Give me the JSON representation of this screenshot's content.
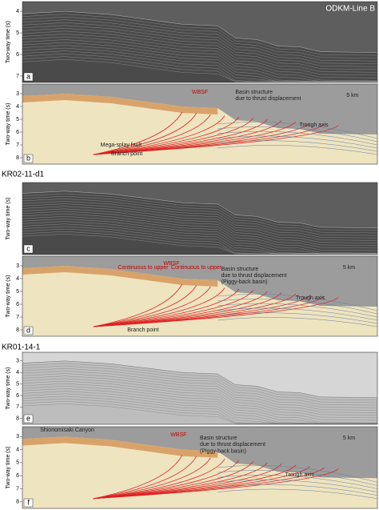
{
  "panels": [
    {
      "letter": "a",
      "line_name": "ODKM-Line B",
      "axis_label": "Two-way time (s)",
      "ticks": [
        "4",
        "5",
        "6",
        "7"
      ],
      "kind": "seismic",
      "annotations": []
    },
    {
      "letter": "b",
      "axis_label": "Two-way time (s)",
      "ticks": [
        "3",
        "4",
        "5",
        "6",
        "7",
        "8"
      ],
      "kind": "interp",
      "annotations": [
        "WBSF",
        "Basin structure",
        "due to thrust displacement",
        "5 km",
        "Trough axis",
        "Mega-splay fault",
        "Branch point"
      ]
    },
    {
      "letter": "c",
      "line_name": "KR02-11-d1",
      "axis_label": "Two-way time (s)",
      "ticks": [],
      "kind": "seismic",
      "annotations": []
    },
    {
      "letter": "d",
      "axis_label": "Two-way time (s)",
      "ticks": [
        "3",
        "4",
        "5",
        "6",
        "7",
        "8"
      ],
      "kind": "interp",
      "annotations": [
        "Continuous to upper",
        "WBSF",
        "Continuous to upper",
        "Basin structure",
        "due to thrust displacement",
        "(Piggy-back basin)",
        "5 km",
        "Trough axis",
        "Branch point"
      ]
    },
    {
      "letter": "e",
      "line_name": "KR01-14-1",
      "axis_label": "Two-way time (s)",
      "ticks": [
        "3",
        "4",
        "5",
        "6",
        "7",
        "8"
      ],
      "kind": "seismic-light",
      "annotations": []
    },
    {
      "letter": "f",
      "axis_label": "Two-way time (s)",
      "ticks": [
        "3",
        "4",
        "5",
        "6",
        "7",
        "8"
      ],
      "kind": "interp",
      "annotations": [
        "Shionomisaki Canyon",
        "WBSF",
        "Basin structure",
        "due to thrust displacement",
        "(Piggy-back basin)",
        "5 km",
        "Trough axis"
      ]
    }
  ]
}
